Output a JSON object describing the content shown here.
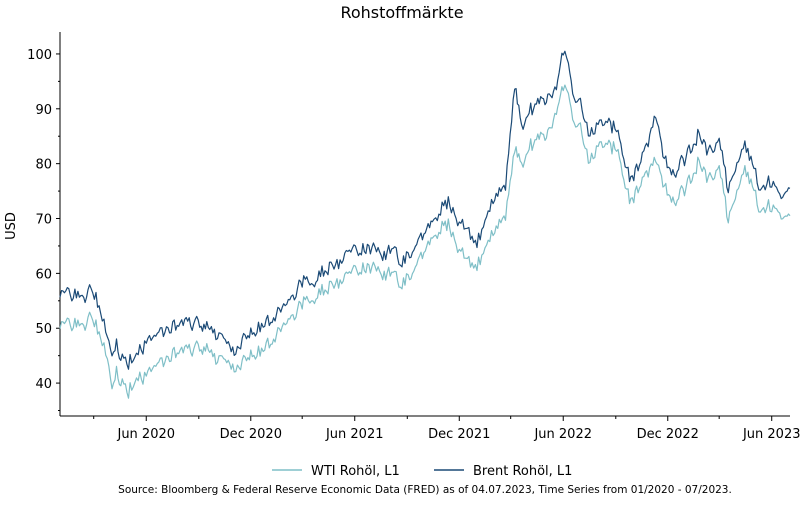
{
  "chart_data": {
    "type": "line",
    "title": "Rohstoffmärkte",
    "xlabel": "",
    "ylabel": "USD",
    "ylim": [
      34,
      104
    ],
    "xlim": [
      "2020-01-02",
      "2023-07-03"
    ],
    "y_ticks": [
      40,
      50,
      60,
      70,
      80,
      90,
      100
    ],
    "x_ticks": [
      {
        "date": "2020-06-01",
        "label": "Jun 2020"
      },
      {
        "date": "2020-12-01",
        "label": "Dec 2020"
      },
      {
        "date": "2021-06-01",
        "label": "Jun 2021"
      },
      {
        "date": "2021-12-01",
        "label": "Dec 2021"
      },
      {
        "date": "2022-06-01",
        "label": "Jun 2022"
      },
      {
        "date": "2022-12-01",
        "label": "Dec 2022"
      },
      {
        "date": "2023-06-01",
        "label": "Jun 2023"
      }
    ],
    "grid": false,
    "legend_position": "bottom-center",
    "series": [
      {
        "name": "WTI Rohöl, L1",
        "color": "#7fbfc7",
        "points": [
          [
            "2020-01-02",
            51.3
          ],
          [
            "2020-01-20",
            51.0
          ],
          [
            "2020-02-05",
            49.8
          ],
          [
            "2020-02-20",
            51.5
          ],
          [
            "2020-03-05",
            50.5
          ],
          [
            "2020-03-16",
            47.5
          ],
          [
            "2020-03-25",
            44.0
          ],
          [
            "2020-04-02",
            38.5
          ],
          [
            "2020-04-10",
            41.5
          ],
          [
            "2020-04-20",
            40.0
          ],
          [
            "2020-05-01",
            38.2
          ],
          [
            "2020-05-15",
            40.5
          ],
          [
            "2020-06-01",
            41.5
          ],
          [
            "2020-06-15",
            43.0
          ],
          [
            "2020-07-01",
            43.5
          ],
          [
            "2020-07-20",
            45.0
          ],
          [
            "2020-08-10",
            46.0
          ],
          [
            "2020-08-31",
            46.8
          ],
          [
            "2020-09-15",
            45.5
          ],
          [
            "2020-10-01",
            44.0
          ],
          [
            "2020-10-20",
            44.5
          ],
          [
            "2020-11-02",
            42.0
          ],
          [
            "2020-11-16",
            43.5
          ],
          [
            "2020-12-01",
            44.5
          ],
          [
            "2020-12-20",
            46.0
          ],
          [
            "2021-01-05",
            47.0
          ],
          [
            "2021-01-25",
            50.0
          ],
          [
            "2021-02-10",
            52.5
          ],
          [
            "2021-03-01",
            54.5
          ],
          [
            "2021-03-20",
            55.0
          ],
          [
            "2021-04-10",
            57.0
          ],
          [
            "2021-05-01",
            58.5
          ],
          [
            "2021-05-20",
            59.5
          ],
          [
            "2021-06-10",
            61.0
          ],
          [
            "2021-07-01",
            61.5
          ],
          [
            "2021-07-20",
            59.5
          ],
          [
            "2021-08-10",
            61.0
          ],
          [
            "2021-08-20",
            56.5
          ],
          [
            "2021-09-05",
            60.0
          ],
          [
            "2021-09-25",
            63.0
          ],
          [
            "2021-10-15",
            66.0
          ],
          [
            "2021-11-01",
            68.5
          ],
          [
            "2021-11-20",
            68.0
          ],
          [
            "2021-12-01",
            64.5
          ],
          [
            "2021-12-15",
            62.5
          ],
          [
            "2022-01-01",
            60.8
          ],
          [
            "2022-01-15",
            65.0
          ],
          [
            "2022-02-01",
            67.5
          ],
          [
            "2022-02-20",
            71.0
          ],
          [
            "2022-03-08",
            82.0
          ],
          [
            "2022-03-20",
            79.5
          ],
          [
            "2022-04-05",
            83.0
          ],
          [
            "2022-04-20",
            84.5
          ],
          [
            "2022-05-05",
            86.0
          ],
          [
            "2022-05-20",
            88.5
          ],
          [
            "2022-06-01",
            94.5
          ],
          [
            "2022-06-10",
            93.5
          ],
          [
            "2022-06-20",
            88.0
          ],
          [
            "2022-07-01",
            86.5
          ],
          [
            "2022-07-15",
            80.5
          ],
          [
            "2022-08-01",
            82.5
          ],
          [
            "2022-08-20",
            83.5
          ],
          [
            "2022-09-05",
            81.5
          ],
          [
            "2022-09-25",
            73.0
          ],
          [
            "2022-10-10",
            76.0
          ],
          [
            "2022-10-25",
            78.5
          ],
          [
            "2022-11-10",
            80.5
          ],
          [
            "2022-11-25",
            76.0
          ],
          [
            "2022-12-10",
            73.0
          ],
          [
            "2022-12-25",
            75.0
          ],
          [
            "2023-01-10",
            76.5
          ],
          [
            "2023-01-25",
            80.5
          ],
          [
            "2023-02-10",
            77.0
          ],
          [
            "2023-03-01",
            79.0
          ],
          [
            "2023-03-17",
            69.5
          ],
          [
            "2023-04-01",
            75.0
          ],
          [
            "2023-04-15",
            80.0
          ],
          [
            "2023-05-01",
            74.5
          ],
          [
            "2023-05-15",
            71.5
          ],
          [
            "2023-06-01",
            72.5
          ],
          [
            "2023-06-15",
            70.5
          ],
          [
            "2023-07-03",
            70.5
          ]
        ]
      },
      {
        "name": "Brent Rohöl, L1",
        "color": "#1b4a76",
        "points": [
          [
            "2020-01-02",
            57.0
          ],
          [
            "2020-01-20",
            56.5
          ],
          [
            "2020-02-05",
            55.0
          ],
          [
            "2020-02-20",
            56.5
          ],
          [
            "2020-03-05",
            55.5
          ],
          [
            "2020-03-16",
            52.0
          ],
          [
            "2020-03-25",
            48.0
          ],
          [
            "2020-04-02",
            44.5
          ],
          [
            "2020-04-10",
            46.5
          ],
          [
            "2020-04-20",
            44.5
          ],
          [
            "2020-05-01",
            43.5
          ],
          [
            "2020-05-15",
            45.0
          ],
          [
            "2020-06-01",
            47.5
          ],
          [
            "2020-06-15",
            48.5
          ],
          [
            "2020-07-01",
            49.0
          ],
          [
            "2020-07-20",
            50.0
          ],
          [
            "2020-08-10",
            51.0
          ],
          [
            "2020-08-31",
            51.2
          ],
          [
            "2020-09-15",
            49.5
          ],
          [
            "2020-10-01",
            48.5
          ],
          [
            "2020-10-20",
            48.0
          ],
          [
            "2020-11-02",
            45.0
          ],
          [
            "2020-11-16",
            47.5
          ],
          [
            "2020-12-01",
            48.5
          ],
          [
            "2020-12-20",
            50.5
          ],
          [
            "2021-01-05",
            51.0
          ],
          [
            "2021-01-25",
            53.5
          ],
          [
            "2021-02-10",
            56.0
          ],
          [
            "2021-03-01",
            58.5
          ],
          [
            "2021-03-20",
            58.0
          ],
          [
            "2021-04-10",
            60.5
          ],
          [
            "2021-05-01",
            62.0
          ],
          [
            "2021-05-20",
            63.5
          ],
          [
            "2021-06-10",
            64.5
          ],
          [
            "2021-07-01",
            65.0
          ],
          [
            "2021-07-20",
            63.0
          ],
          [
            "2021-08-10",
            65.5
          ],
          [
            "2021-08-20",
            60.5
          ],
          [
            "2021-09-05",
            64.0
          ],
          [
            "2021-09-25",
            66.5
          ],
          [
            "2021-10-15",
            69.0
          ],
          [
            "2021-11-01",
            72.0
          ],
          [
            "2021-11-20",
            72.5
          ],
          [
            "2021-12-01",
            69.5
          ],
          [
            "2021-12-15",
            68.0
          ],
          [
            "2022-01-01",
            65.0
          ],
          [
            "2022-01-15",
            70.0
          ],
          [
            "2022-02-01",
            73.5
          ],
          [
            "2022-02-20",
            76.5
          ],
          [
            "2022-03-08",
            93.5
          ],
          [
            "2022-03-20",
            86.5
          ],
          [
            "2022-04-05",
            89.5
          ],
          [
            "2022-04-20",
            91.0
          ],
          [
            "2022-05-05",
            92.5
          ],
          [
            "2022-05-20",
            93.0
          ],
          [
            "2022-06-01",
            101.0
          ],
          [
            "2022-06-10",
            99.0
          ],
          [
            "2022-06-20",
            92.5
          ],
          [
            "2022-07-01",
            91.0
          ],
          [
            "2022-07-15",
            85.5
          ],
          [
            "2022-08-01",
            86.5
          ],
          [
            "2022-08-20",
            87.5
          ],
          [
            "2022-09-05",
            85.0
          ],
          [
            "2022-09-25",
            77.0
          ],
          [
            "2022-10-10",
            80.0
          ],
          [
            "2022-10-25",
            83.5
          ],
          [
            "2022-11-10",
            88.5
          ],
          [
            "2022-11-25",
            81.0
          ],
          [
            "2022-12-10",
            78.0
          ],
          [
            "2022-12-25",
            80.5
          ],
          [
            "2023-01-10",
            82.0
          ],
          [
            "2023-01-25",
            85.5
          ],
          [
            "2023-02-10",
            82.0
          ],
          [
            "2023-03-01",
            84.0
          ],
          [
            "2023-03-17",
            75.0
          ],
          [
            "2023-04-01",
            80.0
          ],
          [
            "2023-04-15",
            84.5
          ],
          [
            "2023-05-01",
            78.5
          ],
          [
            "2023-05-15",
            75.5
          ],
          [
            "2023-06-01",
            77.0
          ],
          [
            "2023-06-15",
            74.0
          ],
          [
            "2023-07-03",
            75.5
          ]
        ]
      }
    ]
  },
  "source_note": "Source: Bloomberg & Federal Reserve Economic Data (FRED) as of 04.07.2023, Time Series from 01/2020 - 07/2023."
}
